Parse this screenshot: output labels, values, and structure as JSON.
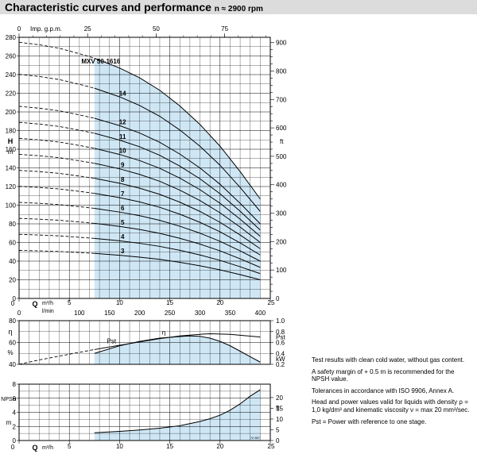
{
  "title": {
    "main": "Characteristic curves and performance",
    "sub": "n ≈ 2900 rpm"
  },
  "colors": {
    "fill": "#cfe7f5",
    "line": "#000000",
    "grid": "#000000",
    "header": "#dcdcdc"
  },
  "chart_data": [
    {
      "type": "line",
      "name": "head",
      "model_label": "MXV 50-1616",
      "xlabel": "Q",
      "x_unit": "m³/h",
      "xlim": [
        0,
        25
      ],
      "ylabel": "H",
      "y_unit": "m",
      "ylim": [
        0,
        280
      ],
      "right_unit": "ft",
      "right_lim": [
        0,
        918.6
      ],
      "right_ticks": [
        "0",
        "100",
        "200",
        "300",
        "400",
        "500",
        "600",
        "700",
        "800",
        "900"
      ],
      "top_axis": {
        "label": "Imp. g.p.m.",
        "ticks": [
          "0",
          "25",
          "50",
          "75"
        ]
      },
      "x_ticks": [
        "0",
        "5",
        "10",
        "15",
        "20",
        "25"
      ],
      "lpm_axis": {
        "label": "l/min",
        "ticks": [
          "0",
          "100",
          "150",
          "200",
          "250",
          "300",
          "350",
          "400"
        ]
      },
      "y_ticks": [
        "0",
        "20",
        "40",
        "60",
        "80",
        "100",
        "120",
        "140",
        "160",
        "180",
        "200",
        "220",
        "240",
        "260",
        "280"
      ],
      "operating_range": [
        7.5,
        24
      ],
      "series": [
        {
          "name": "3",
          "x": [
            0,
            2,
            4,
            6,
            7.5,
            10,
            12,
            14,
            16,
            18,
            20,
            22,
            24
          ],
          "y": [
            51.5,
            51,
            50.3,
            49.2,
            48.3,
            46.3,
            44.3,
            41.9,
            38.7,
            35,
            30.6,
            25.5,
            20
          ]
        },
        {
          "name": "4",
          "x": [
            0,
            2,
            4,
            6,
            7.5,
            10,
            12,
            14,
            16,
            18,
            20,
            22,
            24
          ],
          "y": [
            68.7,
            68,
            67.1,
            65.6,
            64.4,
            61.8,
            59.1,
            55.8,
            51.6,
            46.6,
            40.8,
            34,
            26.6
          ]
        },
        {
          "name": "5",
          "x": [
            0,
            2,
            4,
            6,
            7.5,
            10,
            12,
            14,
            16,
            18,
            20,
            22,
            24
          ],
          "y": [
            85.8,
            85,
            83.8,
            82,
            80.5,
            77.2,
            73.9,
            69.8,
            64.5,
            58.3,
            51,
            42.5,
            33.3
          ]
        },
        {
          "name": "6",
          "x": [
            0,
            2,
            4,
            6,
            7.5,
            10,
            12,
            14,
            16,
            18,
            20,
            22,
            24
          ],
          "y": [
            103,
            102,
            100.6,
            98.4,
            96.6,
            92.6,
            88.7,
            83.7,
            77.4,
            70,
            61.2,
            51,
            40
          ]
        },
        {
          "name": "7",
          "x": [
            0,
            2,
            4,
            6,
            7.5,
            10,
            12,
            14,
            16,
            18,
            20,
            22,
            24
          ],
          "y": [
            120.2,
            119,
            117.4,
            114.8,
            112.7,
            108.1,
            103.5,
            97.7,
            90.3,
            81.6,
            71.4,
            59.5,
            46.6
          ]
        },
        {
          "name": "8",
          "x": [
            0,
            2,
            4,
            6,
            7.5,
            10,
            12,
            14,
            16,
            18,
            20,
            22,
            24
          ],
          "y": [
            137.3,
            136,
            134.1,
            131.2,
            128.8,
            123.5,
            118.2,
            111.6,
            103.2,
            93.3,
            81.6,
            68,
            53.3
          ]
        },
        {
          "name": "9",
          "x": [
            0,
            2,
            4,
            6,
            7.5,
            10,
            12,
            14,
            16,
            18,
            20,
            22,
            24
          ],
          "y": [
            154.5,
            153,
            150.9,
            147.6,
            144.9,
            139,
            133,
            125.6,
            116.1,
            105,
            91.8,
            76.5,
            60
          ]
        },
        {
          "name": "10",
          "x": [
            0,
            2,
            4,
            6,
            7.5,
            10,
            12,
            14,
            16,
            18,
            20,
            22,
            24
          ],
          "y": [
            171.7,
            170,
            167.7,
            164,
            161,
            154.4,
            147.8,
            139.5,
            129,
            116.6,
            102,
            85,
            66.6
          ]
        },
        {
          "name": "11",
          "x": [
            0,
            2,
            4,
            6,
            7.5,
            10,
            12,
            14,
            16,
            18,
            20,
            22,
            24
          ],
          "y": [
            188.8,
            187,
            184.4,
            180.4,
            177.1,
            169.8,
            162.6,
            153.5,
            141.9,
            128.3,
            112.2,
            93.5,
            73.3
          ]
        },
        {
          "name": "12",
          "x": [
            0,
            2,
            4,
            6,
            7.5,
            10,
            12,
            14,
            16,
            18,
            20,
            22,
            24
          ],
          "y": [
            206,
            204,
            201.2,
            196.8,
            193.2,
            185.3,
            177.4,
            167.4,
            154.8,
            139.9,
            122.4,
            102,
            80
          ]
        },
        {
          "name": "14",
          "x": [
            0,
            2,
            4,
            6,
            7.5,
            10,
            12,
            14,
            16,
            18,
            20,
            22,
            24
          ],
          "y": [
            240.3,
            238,
            234.7,
            229.6,
            225.4,
            216.2,
            206.9,
            195.3,
            180.6,
            163.2,
            142.8,
            119,
            93.3
          ]
        },
        {
          "name": "16",
          "x": [
            0,
            2,
            4,
            6,
            7.5,
            10,
            12,
            14,
            16,
            18,
            20,
            22,
            24
          ],
          "y": [
            274.7,
            272,
            268.3,
            262.4,
            257.6,
            247.1,
            236.5,
            223.2,
            206.4,
            186.6,
            163.2,
            136,
            106.6
          ]
        }
      ]
    },
    {
      "type": "line",
      "name": "efficiency-power",
      "xlim": [
        0,
        25
      ],
      "left_label": "η",
      "left_unit": "%",
      "left_lim": [
        40,
        80
      ],
      "left_ticks": [
        "40",
        "60",
        "80"
      ],
      "right_label": "Pst",
      "right_unit": "kW",
      "right_lim": [
        0.2,
        1.0
      ],
      "right_ticks": [
        "0.2",
        "0.4",
        "0.6",
        "0.8",
        "1.0"
      ],
      "series": [
        {
          "name": "Pst",
          "x": [
            0,
            2,
            4,
            6,
            7.5,
            10,
            12,
            14,
            16,
            18,
            19,
            21,
            24
          ],
          "y": [
            0.2,
            0.28,
            0.35,
            0.42,
            0.47,
            0.55,
            0.61,
            0.67,
            0.72,
            0.75,
            0.76,
            0.75,
            0.7
          ]
        },
        {
          "name": "η",
          "x": [
            7.5,
            10,
            12,
            14,
            16,
            17,
            18,
            19,
            20,
            21,
            22,
            23,
            24
          ],
          "y": [
            50,
            57,
            61,
            64,
            65.5,
            66,
            65.6,
            64,
            61,
            57,
            52,
            47,
            42
          ]
        }
      ]
    },
    {
      "type": "area",
      "name": "npsh",
      "xlabel": "Q",
      "x_unit": "m³/h",
      "xlim": [
        0,
        25
      ],
      "x_ticks": [
        "0",
        "5",
        "10",
        "15",
        "20",
        "25"
      ],
      "ylabel": "NPSH",
      "y_unit": "m",
      "ylim": [
        0,
        8
      ],
      "y_ticks": [
        "0",
        "2",
        "4",
        "6",
        "8"
      ],
      "right_unit": "ft",
      "right_lim": [
        0,
        26.25
      ],
      "right_ticks": [
        "0",
        "5",
        "10",
        "15",
        "20"
      ],
      "series": [
        {
          "name": "NPSH",
          "x": [
            7.5,
            10,
            12,
            14,
            16,
            18,
            19,
            20,
            21,
            22,
            23,
            24
          ],
          "y": [
            1.1,
            1.3,
            1.5,
            1.75,
            2.1,
            2.7,
            3.1,
            3.6,
            4.3,
            5.2,
            6.3,
            7.2
          ]
        }
      ]
    }
  ],
  "axis_text": {
    "q": "Q",
    "m3h": "m³/h",
    "lpm": "l/min",
    "imp": "Imp. g.p.m.",
    "h": "H",
    "m": "m",
    "ft": "ft",
    "eta": "η",
    "pct": "%",
    "pst": "Pst",
    "kw": "kW",
    "npsh": "NPSH",
    "code": "72 857"
  },
  "notes": [
    "Test results with clean cold water, without gas content.",
    "A safety margin of + 0.5 m is recommended for the NPSH value.",
    "Tolerances in accordance with ISO 9906, Annex A.",
    "Head and power values valid for liquids with density ρ = 1,0 kg/dm³ and kinematic viscosity ν = max 20 mm²/sec.",
    "Pst = Power with reference to one stage."
  ]
}
